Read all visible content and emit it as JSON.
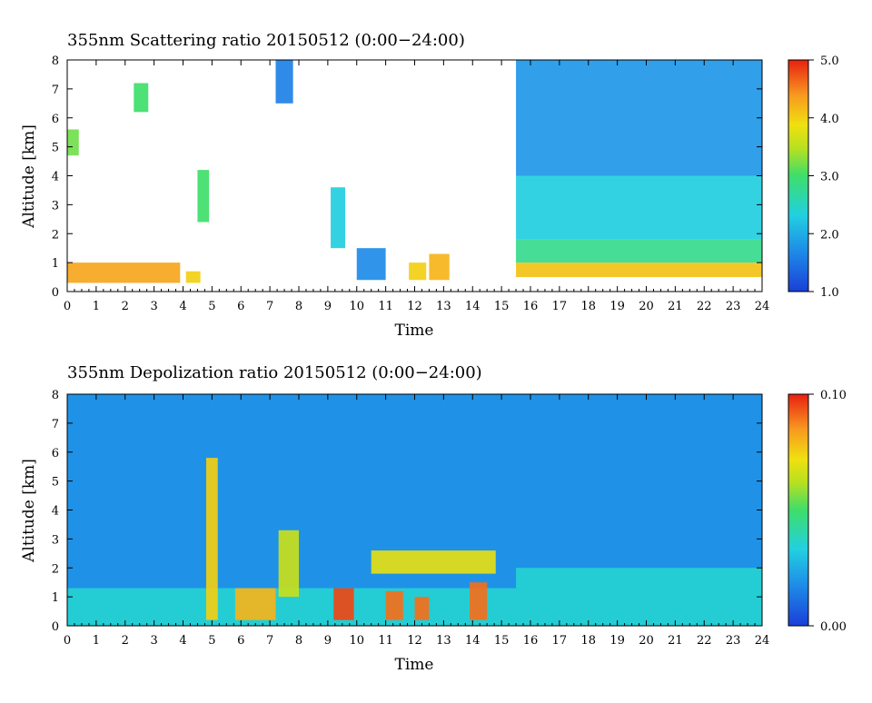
{
  "chart_data": [
    {
      "type": "heatmap",
      "title": "355nm Scattering ratio  20150512 (0:00−24:00)",
      "xlabel": "Time",
      "ylabel": "Altitude [km]",
      "xlim": [
        0,
        24
      ],
      "ylim": [
        0,
        8
      ],
      "x_ticks": [
        "0",
        "1",
        "2",
        "3",
        "4",
        "5",
        "6",
        "7",
        "8",
        "9",
        "10",
        "11",
        "12",
        "13",
        "14",
        "15",
        "16",
        "17",
        "18",
        "19",
        "20",
        "21",
        "22",
        "23",
        "24"
      ],
      "y_ticks": [
        "0",
        "1",
        "2",
        "3",
        "4",
        "5",
        "6",
        "7",
        "8"
      ],
      "colorbar": {
        "min": 1.0,
        "max": 5.0,
        "ticks": [
          "1.0",
          "2.0",
          "3.0",
          "4.0",
          "5.0"
        ]
      },
      "features": [
        {
          "t0": 0.0,
          "t1": 3.9,
          "z0": 0.3,
          "z1": 1.0,
          "value": 4.3
        },
        {
          "t0": 4.1,
          "t1": 4.6,
          "z0": 0.3,
          "z1": 0.7,
          "value": 4.0
        },
        {
          "t0": 4.5,
          "t1": 4.9,
          "z0": 2.4,
          "z1": 4.2,
          "value": 3.0
        },
        {
          "t0": 7.2,
          "t1": 7.8,
          "z0": 6.5,
          "z1": 8.0,
          "value": 1.6
        },
        {
          "t0": 9.1,
          "t1": 9.6,
          "z0": 1.5,
          "z1": 3.6,
          "value": 2.3
        },
        {
          "t0": 10.0,
          "t1": 11.0,
          "z0": 0.4,
          "z1": 1.5,
          "value": 1.7
        },
        {
          "t0": 11.8,
          "t1": 12.4,
          "z0": 0.4,
          "z1": 1.0,
          "value": 4.0
        },
        {
          "t0": 12.5,
          "t1": 13.2,
          "z0": 0.4,
          "z1": 1.3,
          "value": 4.2
        },
        {
          "t0": 15.5,
          "t1": 24.0,
          "z0": 0.5,
          "z1": 1.0,
          "value": 4.1
        },
        {
          "t0": 15.5,
          "t1": 24.0,
          "z0": 1.0,
          "z1": 1.8,
          "value": 2.8
        },
        {
          "t0": 15.5,
          "t1": 24.0,
          "z0": 1.8,
          "z1": 4.0,
          "value": 2.3
        },
        {
          "t0": 15.5,
          "t1": 24.0,
          "z0": 4.0,
          "z1": 8.0,
          "value": 1.8
        },
        {
          "t0": 0.0,
          "t1": 0.4,
          "z0": 4.7,
          "z1": 5.6,
          "value": 3.2
        },
        {
          "t0": 2.3,
          "t1": 2.8,
          "z0": 6.2,
          "z1": 7.2,
          "value": 3.0
        }
      ]
    },
    {
      "type": "heatmap",
      "title": "355nm Depolization ratio  20150512 (0:00−24:00)",
      "xlabel": "Time",
      "ylabel": "Altitude [km]",
      "xlim": [
        0,
        24
      ],
      "ylim": [
        0,
        8
      ],
      "x_ticks": [
        "0",
        "1",
        "2",
        "3",
        "4",
        "5",
        "6",
        "7",
        "8",
        "9",
        "10",
        "11",
        "12",
        "13",
        "14",
        "15",
        "16",
        "17",
        "18",
        "19",
        "20",
        "21",
        "22",
        "23",
        "24"
      ],
      "y_ticks": [
        "0",
        "1",
        "2",
        "3",
        "4",
        "5",
        "6",
        "7",
        "8"
      ],
      "colorbar": {
        "min": 0.0,
        "max": 0.1,
        "ticks": [
          "0.00",
          "0.10"
        ]
      },
      "features": [
        {
          "t0": 0.0,
          "t1": 24.0,
          "z0": 0.0,
          "z1": 8.0,
          "value": 0.02
        },
        {
          "t0": 0.0,
          "t1": 15.5,
          "z0": 0.0,
          "z1": 1.3,
          "value": 0.035
        },
        {
          "t0": 15.5,
          "t1": 24.0,
          "z0": 0.0,
          "z1": 2.0,
          "value": 0.035
        },
        {
          "t0": 7.3,
          "t1": 8.0,
          "z0": 1.0,
          "z1": 3.3,
          "value": 0.065
        },
        {
          "t0": 9.2,
          "t1": 9.9,
          "z0": 0.2,
          "z1": 1.3,
          "value": 0.095
        },
        {
          "t0": 11.0,
          "t1": 11.6,
          "z0": 0.2,
          "z1": 1.2,
          "value": 0.09
        },
        {
          "t0": 12.0,
          "t1": 12.5,
          "z0": 0.2,
          "z1": 1.0,
          "value": 0.09
        },
        {
          "t0": 13.9,
          "t1": 14.5,
          "z0": 0.2,
          "z1": 1.5,
          "value": 0.09
        },
        {
          "t0": 4.8,
          "t1": 5.2,
          "z0": 0.2,
          "z1": 5.8,
          "value": 0.075
        },
        {
          "t0": 5.8,
          "t1": 7.2,
          "z0": 0.2,
          "z1": 1.3,
          "value": 0.08
        },
        {
          "t0": 10.5,
          "t1": 14.8,
          "z0": 1.8,
          "z1": 2.6,
          "value": 0.07
        }
      ]
    }
  ]
}
